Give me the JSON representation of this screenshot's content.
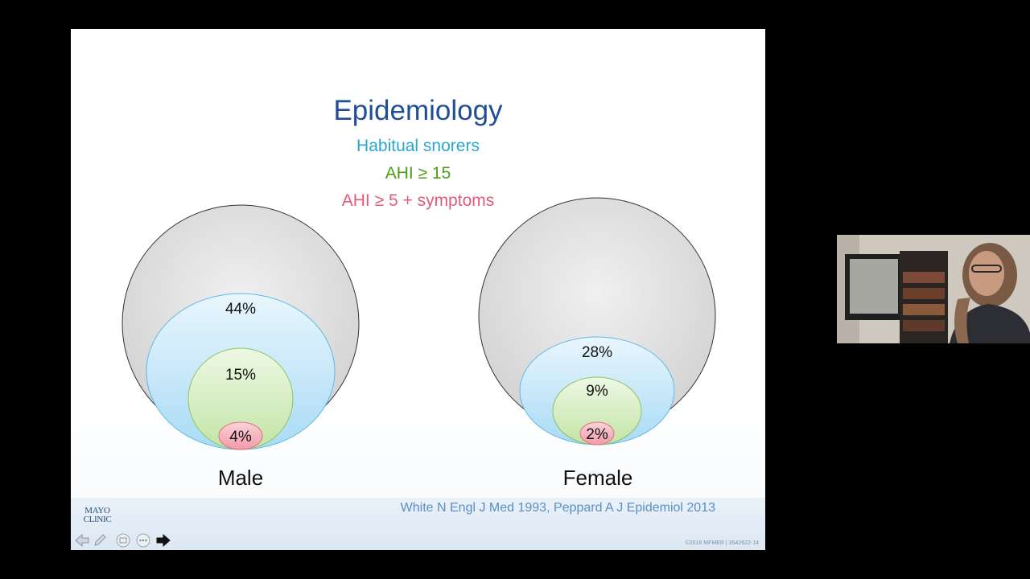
{
  "slide": {
    "title": "Epidemiology",
    "legend": [
      {
        "label": "Habitual snorers",
        "color": "#29a7d3"
      },
      {
        "label": "AHI ≥ 15",
        "color": "#4f9b17"
      },
      {
        "label": "AHI ≥ 5 + symptoms",
        "color": "#e15b78"
      }
    ],
    "groups": [
      {
        "name": "Male",
        "snorers": "44%",
        "ahi15": "15%",
        "ahi5_symptoms": "4%"
      },
      {
        "name": "Female",
        "snorers": "28%",
        "ahi15": "9%",
        "ahi5_symptoms": "2%"
      }
    ],
    "citation": "White N Engl J Med 1993, Peppard A J Epidemiol 2013",
    "copyright": "©2018 MFMER  |  3542622-14",
    "logo": {
      "line1": "MAYO",
      "line2": "CLINIC"
    }
  },
  "toolbar": {
    "icons": [
      "arrow-left-icon",
      "pen-icon",
      "slides-icon",
      "more-icon",
      "arrow-right-icon"
    ]
  },
  "colors": {
    "outer_circle": "#dedede",
    "snorers_fill": "#c7e8fa",
    "ahi15_fill": "#d7efc1",
    "symptoms_fill": "#f7b9c2",
    "title": "#1f4e97"
  }
}
